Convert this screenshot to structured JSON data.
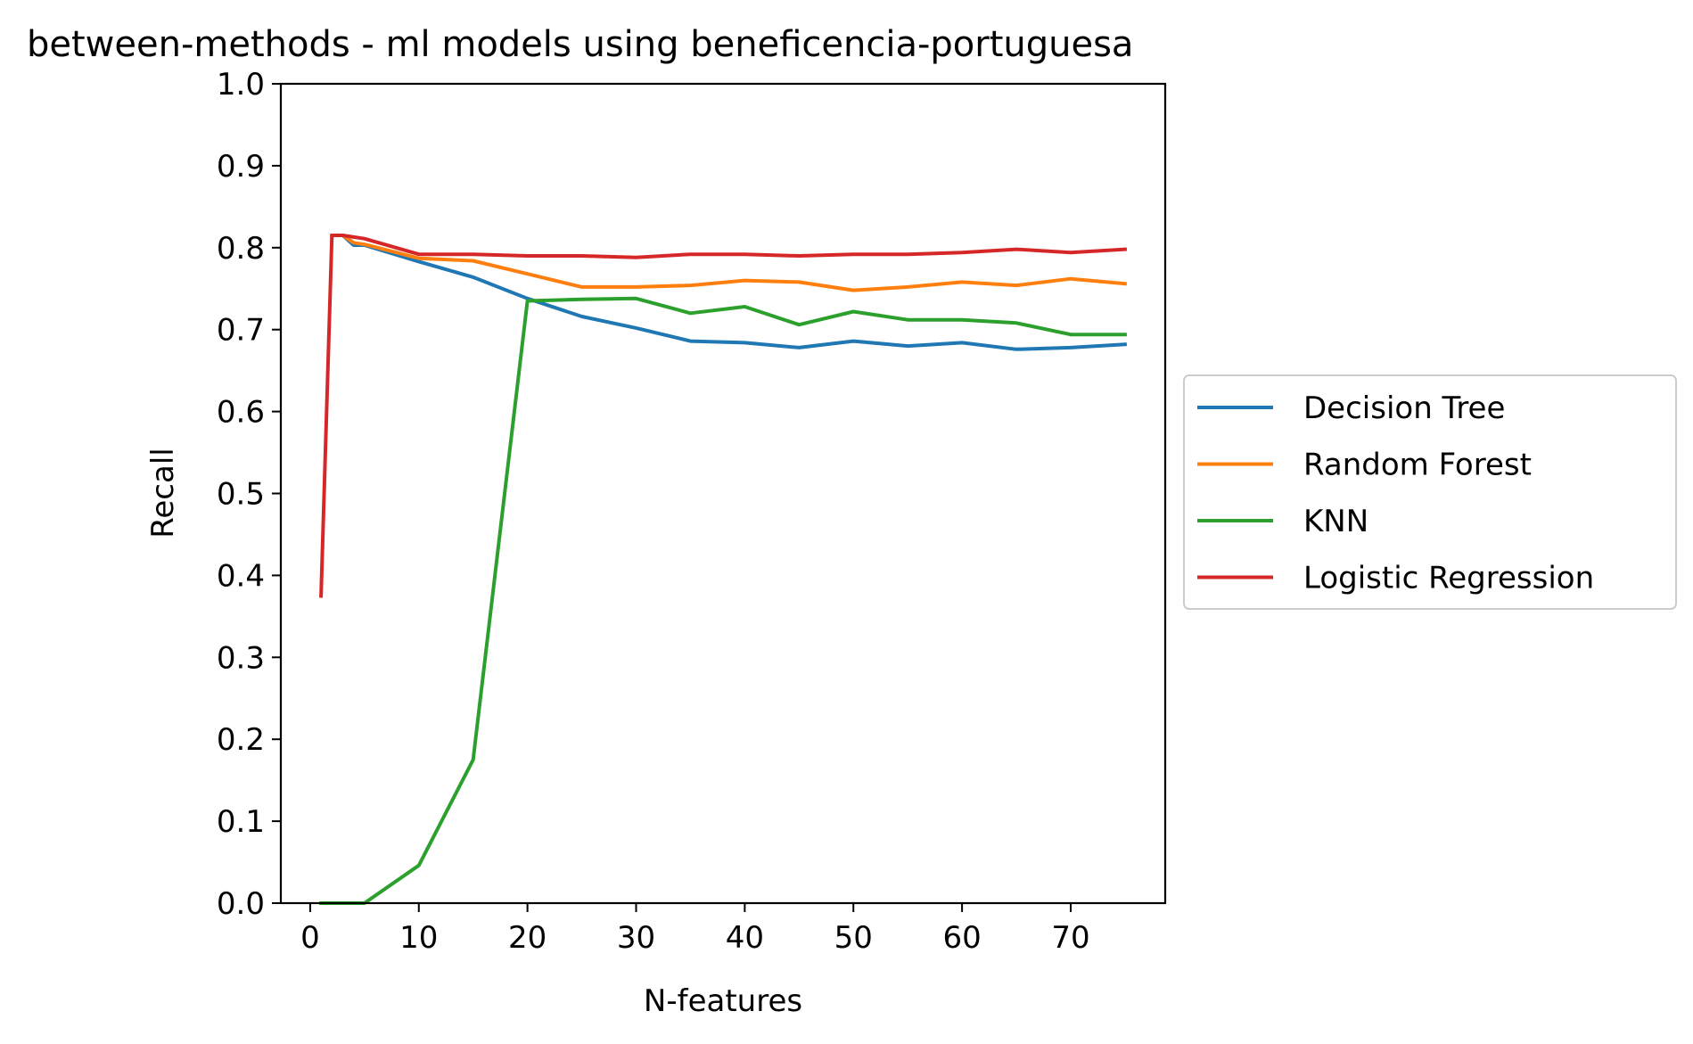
{
  "chart_data": {
    "type": "line",
    "title": "between-methods - ml models using beneficencia-portuguesa",
    "xlabel": "N-features",
    "ylabel": "Recall",
    "xlim": [
      -2.7,
      78.7
    ],
    "ylim": [
      0.0,
      1.0
    ],
    "xticks": [
      0,
      10,
      20,
      30,
      40,
      50,
      60,
      70
    ],
    "yticks": [
      0.0,
      0.1,
      0.2,
      0.3,
      0.4,
      0.5,
      0.6,
      0.7,
      0.8,
      0.9,
      1.0
    ],
    "xtick_labels": [
      "0",
      "10",
      "20",
      "30",
      "40",
      "50",
      "60",
      "70"
    ],
    "ytick_labels": [
      "0.0",
      "0.1",
      "0.2",
      "0.3",
      "0.4",
      "0.5",
      "0.6",
      "0.7",
      "0.8",
      "0.9",
      "1.0"
    ],
    "grid": false,
    "legend_position": "center-right-outside",
    "series": [
      {
        "name": "Decision Tree",
        "color": "#1f77b4",
        "x": [
          2,
          3,
          4,
          5,
          10,
          15,
          20,
          25,
          30,
          35,
          40,
          45,
          50,
          55,
          60,
          65,
          70,
          75
        ],
        "y": [
          0.815,
          0.815,
          0.803,
          0.803,
          0.783,
          0.764,
          0.738,
          0.716,
          0.702,
          0.686,
          0.684,
          0.678,
          0.686,
          0.68,
          0.684,
          0.676,
          0.678,
          0.682
        ]
      },
      {
        "name": "Random Forest",
        "color": "#ff7f0e",
        "x": [
          2,
          3,
          4,
          5,
          10,
          15,
          20,
          25,
          30,
          35,
          40,
          45,
          50,
          55,
          60,
          65,
          70,
          75
        ],
        "y": [
          0.815,
          0.815,
          0.806,
          0.804,
          0.787,
          0.784,
          0.768,
          0.752,
          0.752,
          0.754,
          0.76,
          0.758,
          0.748,
          0.752,
          0.758,
          0.754,
          0.762,
          0.756
        ]
      },
      {
        "name": "KNN",
        "color": "#2ca02c",
        "x": [
          1,
          2,
          3,
          4,
          5,
          10,
          15,
          20,
          25,
          30,
          35,
          40,
          45,
          50,
          55,
          60,
          65,
          70,
          75
        ],
        "y": [
          0.0,
          0.0,
          0.0,
          0.0,
          0.0,
          0.046,
          0.175,
          0.735,
          0.737,
          0.738,
          0.72,
          0.728,
          0.706,
          0.722,
          0.712,
          0.712,
          0.708,
          0.694,
          0.694
        ]
      },
      {
        "name": "Logistic Regression",
        "color": "#d62728",
        "x": [
          1,
          2,
          3,
          4,
          5,
          10,
          15,
          20,
          25,
          30,
          35,
          40,
          45,
          50,
          55,
          60,
          65,
          70,
          75
        ],
        "y": [
          0.375,
          0.815,
          0.815,
          0.813,
          0.811,
          0.792,
          0.792,
          0.79,
          0.79,
          0.788,
          0.792,
          0.792,
          0.79,
          0.792,
          0.792,
          0.794,
          0.798,
          0.794,
          0.798
        ]
      }
    ]
  }
}
